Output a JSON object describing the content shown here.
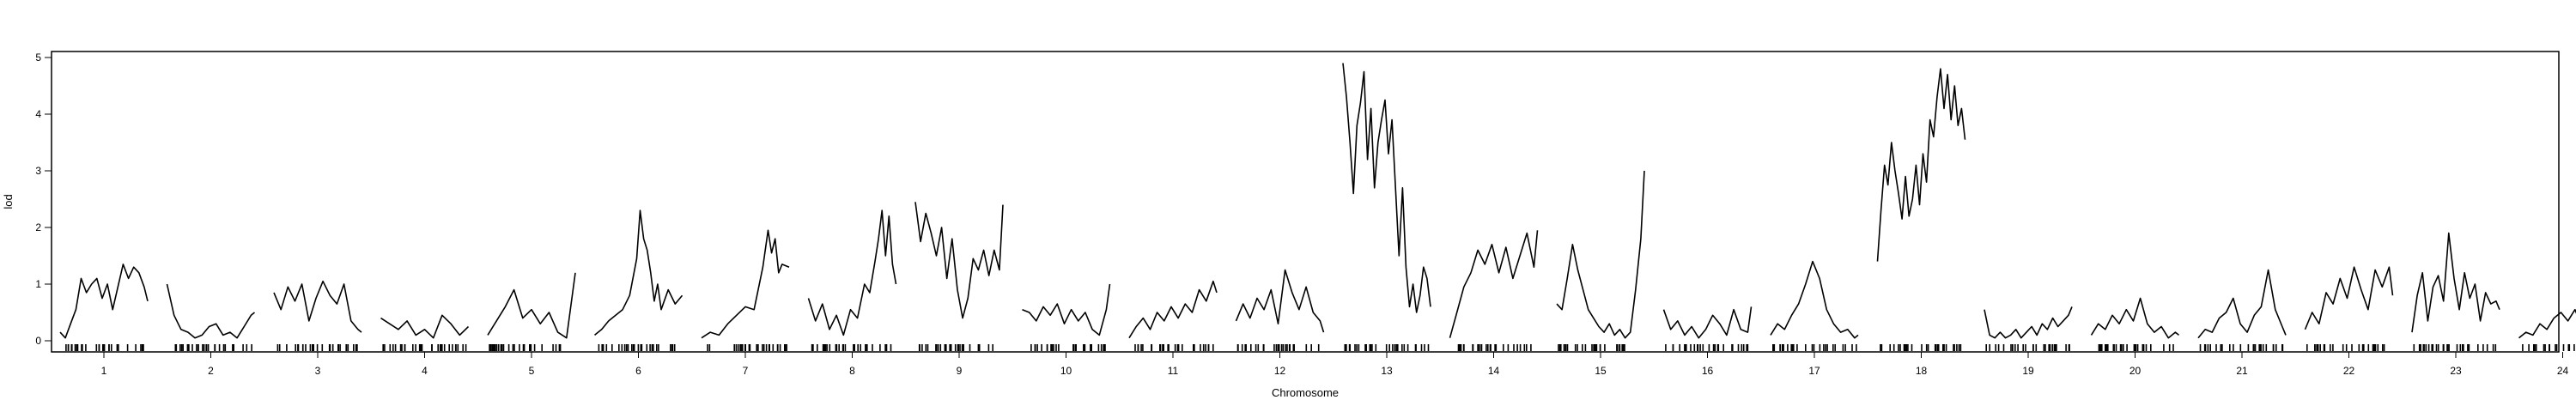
{
  "chart_data": {
    "type": "line",
    "title": "",
    "xlabel": "Chromosome",
    "ylabel": "lod",
    "ylim": [
      0,
      5
    ],
    "yticks": [
      0,
      1,
      2,
      3,
      4,
      5
    ],
    "grid": false,
    "legend": "none",
    "line_color": "#000000",
    "series": [
      {
        "chromosome": "1",
        "x": [
          0,
          6,
          12,
          18,
          24,
          30,
          36,
          42,
          48,
          54,
          60,
          66,
          72,
          78,
          84,
          90,
          96,
          100
        ],
        "values": [
          0.15,
          0.05,
          0.3,
          0.55,
          1.1,
          0.85,
          1.0,
          1.1,
          0.75,
          1.0,
          0.55,
          0.95,
          1.35,
          1.1,
          1.3,
          1.2,
          0.95,
          0.7
        ]
      },
      {
        "chromosome": "2",
        "x": [
          0,
          8,
          16,
          24,
          32,
          40,
          48,
          56,
          64,
          72,
          80,
          88,
          96,
          100
        ],
        "values": [
          1.0,
          0.45,
          0.2,
          0.15,
          0.05,
          0.1,
          0.25,
          0.3,
          0.1,
          0.15,
          0.05,
          0.25,
          0.45,
          0.5
        ]
      },
      {
        "chromosome": "3",
        "x": [
          0,
          8,
          16,
          24,
          32,
          40,
          48,
          56,
          64,
          72,
          80,
          88,
          96,
          100
        ],
        "values": [
          0.85,
          0.55,
          0.95,
          0.7,
          1.0,
          0.35,
          0.75,
          1.05,
          0.8,
          0.65,
          1.0,
          0.35,
          0.2,
          0.15
        ]
      },
      {
        "chromosome": "4",
        "x": [
          0,
          10,
          20,
          30,
          40,
          50,
          60,
          70,
          80,
          90,
          100
        ],
        "values": [
          0.4,
          0.3,
          0.2,
          0.35,
          0.1,
          0.2,
          0.05,
          0.45,
          0.3,
          0.1,
          0.25
        ]
      },
      {
        "chromosome": "5",
        "x": [
          0,
          10,
          20,
          30,
          40,
          50,
          60,
          70,
          80,
          90,
          100
        ],
        "values": [
          0.1,
          0.35,
          0.6,
          0.9,
          0.4,
          0.55,
          0.3,
          0.5,
          0.15,
          0.05,
          1.2
        ]
      },
      {
        "chromosome": "6",
        "x": [
          0,
          8,
          16,
          24,
          32,
          40,
          48,
          52,
          56,
          60,
          64,
          68,
          72,
          76,
          84,
          92,
          100
        ],
        "values": [
          0.1,
          0.2,
          0.35,
          0.45,
          0.55,
          0.8,
          1.45,
          2.3,
          1.8,
          1.6,
          1.2,
          0.7,
          1.0,
          0.55,
          0.9,
          0.65,
          0.8
        ]
      },
      {
        "chromosome": "7",
        "x": [
          0,
          10,
          20,
          30,
          40,
          50,
          60,
          70,
          76,
          80,
          84,
          88,
          92,
          100
        ],
        "values": [
          0.05,
          0.15,
          0.1,
          0.3,
          0.45,
          0.6,
          0.55,
          1.3,
          1.95,
          1.55,
          1.8,
          1.2,
          1.35,
          1.3
        ]
      },
      {
        "chromosome": "8",
        "x": [
          0,
          8,
          16,
          24,
          32,
          40,
          48,
          56,
          64,
          70,
          76,
          80,
          84,
          88,
          92,
          96,
          100
        ],
        "values": [
          0.75,
          0.35,
          0.65,
          0.2,
          0.45,
          0.1,
          0.55,
          0.4,
          1.0,
          0.85,
          1.4,
          1.8,
          2.3,
          1.5,
          2.2,
          1.35,
          1.0
        ]
      },
      {
        "chromosome": "9",
        "x": [
          0,
          6,
          12,
          18,
          24,
          30,
          36,
          42,
          48,
          54,
          60,
          66,
          72,
          78,
          84,
          90,
          96,
          100
        ],
        "values": [
          2.45,
          1.75,
          2.25,
          1.9,
          1.5,
          2.0,
          1.1,
          1.8,
          0.9,
          0.4,
          0.75,
          1.45,
          1.25,
          1.6,
          1.15,
          1.6,
          1.25,
          2.4
        ]
      },
      {
        "chromosome": "10",
        "x": [
          0,
          8,
          16,
          24,
          32,
          40,
          48,
          56,
          64,
          72,
          80,
          88,
          96,
          100
        ],
        "values": [
          0.55,
          0.5,
          0.35,
          0.6,
          0.45,
          0.65,
          0.3,
          0.55,
          0.35,
          0.5,
          0.2,
          0.1,
          0.55,
          1.0
        ]
      },
      {
        "chromosome": "11",
        "x": [
          0,
          8,
          16,
          24,
          32,
          40,
          48,
          56,
          64,
          72,
          80,
          88,
          96,
          100
        ],
        "values": [
          0.05,
          0.25,
          0.4,
          0.2,
          0.5,
          0.35,
          0.6,
          0.4,
          0.65,
          0.5,
          0.9,
          0.7,
          1.05,
          0.85
        ]
      },
      {
        "chromosome": "12",
        "x": [
          0,
          8,
          16,
          24,
          32,
          40,
          48,
          56,
          64,
          72,
          80,
          88,
          96,
          100
        ],
        "values": [
          0.35,
          0.65,
          0.4,
          0.75,
          0.55,
          0.9,
          0.3,
          1.25,
          0.85,
          0.55,
          0.95,
          0.5,
          0.35,
          0.15
        ]
      },
      {
        "chromosome": "13",
        "x": [
          0,
          4,
          8,
          12,
          16,
          20,
          24,
          28,
          32,
          36,
          40,
          44,
          48,
          52,
          56,
          60,
          64,
          68,
          72,
          76,
          80,
          84,
          88,
          92,
          96,
          100
        ],
        "values": [
          4.9,
          4.3,
          3.5,
          2.6,
          3.8,
          4.2,
          4.75,
          3.2,
          4.1,
          2.7,
          3.5,
          3.9,
          4.25,
          3.3,
          3.9,
          2.7,
          1.5,
          2.7,
          1.3,
          0.6,
          1.0,
          0.5,
          0.8,
          1.3,
          1.1,
          0.6
        ]
      },
      {
        "chromosome": "14",
        "x": [
          0,
          8,
          16,
          24,
          32,
          40,
          48,
          56,
          64,
          72,
          80,
          88,
          96,
          100
        ],
        "values": [
          0.05,
          0.5,
          0.95,
          1.2,
          1.6,
          1.35,
          1.7,
          1.2,
          1.65,
          1.1,
          1.5,
          1.9,
          1.3,
          1.95
        ]
      },
      {
        "chromosome": "15",
        "x": [
          0,
          6,
          12,
          18,
          24,
          30,
          36,
          42,
          48,
          54,
          60,
          66,
          72,
          78,
          84,
          90,
          96,
          100
        ],
        "values": [
          0.65,
          0.55,
          1.1,
          1.7,
          1.25,
          0.9,
          0.55,
          0.4,
          0.25,
          0.15,
          0.3,
          0.1,
          0.2,
          0.05,
          0.15,
          0.9,
          1.8,
          3.0
        ]
      },
      {
        "chromosome": "16",
        "x": [
          0,
          8,
          16,
          24,
          32,
          40,
          48,
          56,
          64,
          72,
          80,
          88,
          96,
          100
        ],
        "values": [
          0.55,
          0.2,
          0.35,
          0.1,
          0.25,
          0.05,
          0.2,
          0.45,
          0.3,
          0.1,
          0.55,
          0.2,
          0.15,
          0.6
        ]
      },
      {
        "chromosome": "17",
        "x": [
          0,
          8,
          16,
          24,
          32,
          40,
          48,
          56,
          64,
          72,
          80,
          88,
          96,
          100
        ],
        "values": [
          0.1,
          0.3,
          0.2,
          0.45,
          0.65,
          1.0,
          1.4,
          1.1,
          0.55,
          0.3,
          0.15,
          0.2,
          0.05,
          0.1
        ]
      },
      {
        "chromosome": "18",
        "x": [
          0,
          4,
          8,
          12,
          16,
          20,
          24,
          28,
          32,
          36,
          40,
          44,
          48,
          52,
          56,
          60,
          64,
          68,
          72,
          76,
          80,
          84,
          88,
          92,
          96,
          100
        ],
        "values": [
          1.4,
          2.3,
          3.1,
          2.75,
          3.5,
          3.0,
          2.6,
          2.15,
          2.9,
          2.2,
          2.5,
          3.1,
          2.4,
          3.3,
          2.8,
          3.9,
          3.6,
          4.3,
          4.8,
          4.1,
          4.7,
          3.9,
          4.5,
          3.8,
          4.1,
          3.55
        ]
      },
      {
        "chromosome": "19",
        "x": [
          0,
          6,
          12,
          18,
          24,
          30,
          36,
          42,
          48,
          54,
          60,
          66,
          72,
          78,
          84,
          90,
          96,
          100
        ],
        "values": [
          0.55,
          0.1,
          0.05,
          0.15,
          0.05,
          0.1,
          0.2,
          0.05,
          0.15,
          0.25,
          0.1,
          0.3,
          0.2,
          0.4,
          0.25,
          0.35,
          0.45,
          0.6
        ]
      },
      {
        "chromosome": "20",
        "x": [
          0,
          8,
          16,
          24,
          32,
          40,
          48,
          56,
          64,
          72,
          80,
          88,
          96,
          100
        ],
        "values": [
          0.1,
          0.3,
          0.2,
          0.45,
          0.3,
          0.55,
          0.35,
          0.75,
          0.3,
          0.15,
          0.25,
          0.05,
          0.15,
          0.1
        ]
      },
      {
        "chromosome": "21",
        "x": [
          0,
          8,
          16,
          24,
          32,
          40,
          48,
          56,
          64,
          72,
          80,
          88,
          96,
          100
        ],
        "values": [
          0.05,
          0.2,
          0.15,
          0.4,
          0.5,
          0.75,
          0.3,
          0.15,
          0.45,
          0.6,
          1.25,
          0.55,
          0.25,
          0.1
        ]
      },
      {
        "chromosome": "22",
        "x": [
          0,
          8,
          16,
          24,
          32,
          40,
          48,
          56,
          64,
          72,
          80,
          88,
          96,
          100
        ],
        "values": [
          0.2,
          0.5,
          0.3,
          0.85,
          0.65,
          1.1,
          0.75,
          1.3,
          0.9,
          0.55,
          1.25,
          0.95,
          1.3,
          0.8
        ]
      },
      {
        "chromosome": "23",
        "x": [
          0,
          6,
          12,
          18,
          24,
          30,
          36,
          42,
          48,
          54,
          60,
          66,
          72,
          78,
          84,
          90,
          96,
          100
        ],
        "values": [
          0.15,
          0.8,
          1.2,
          0.35,
          0.95,
          1.15,
          0.7,
          1.9,
          1.1,
          0.55,
          1.2,
          0.75,
          1.0,
          0.35,
          0.85,
          0.65,
          0.7,
          0.55
        ]
      },
      {
        "chromosome": "24",
        "x": [
          0,
          8,
          16,
          24,
          32,
          40,
          48,
          56,
          64,
          72,
          80,
          88,
          96,
          100
        ],
        "values": [
          0.05,
          0.15,
          0.1,
          0.3,
          0.2,
          0.4,
          0.5,
          0.35,
          0.55,
          0.25,
          0.35,
          0.15,
          0.1,
          0.05
        ]
      }
    ]
  }
}
